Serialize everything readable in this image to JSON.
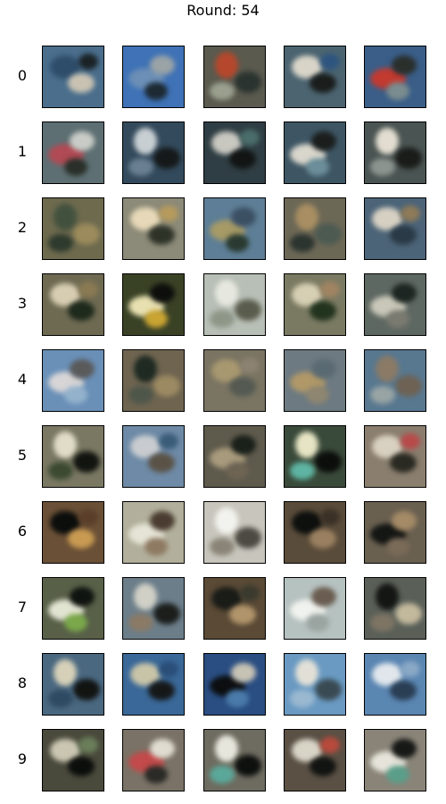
{
  "title": "Round: 54",
  "rows": [
    {
      "label": "0",
      "tiles": [
        {
          "bg": "#4a6e8c",
          "blobs": [
            "#2e4d6b",
            "#c9c2b2",
            "#1a2226"
          ]
        },
        {
          "bg": "#3f72b6",
          "blobs": [
            "#6b8fb6",
            "#9aa3a6",
            "#1d2a33"
          ]
        },
        {
          "bg": "#5a5a4e",
          "blobs": [
            "#b5482c",
            "#2a332f",
            "#9aa08e"
          ]
        },
        {
          "bg": "#4b6470",
          "blobs": [
            "#d8d4c8",
            "#1a1d1c",
            "#2e5580"
          ]
        },
        {
          "bg": "#3a5e88",
          "blobs": [
            "#c23a30",
            "#2a2f2c",
            "#7b8c8e"
          ]
        }
      ]
    },
    {
      "label": "1",
      "tiles": [
        {
          "bg": "#5d6f73",
          "blobs": [
            "#b04a54",
            "#c9ccc6",
            "#2a3029"
          ]
        },
        {
          "bg": "#334a5c",
          "blobs": [
            "#c8cfd3",
            "#16191a",
            "#6a7f92"
          ]
        },
        {
          "bg": "#2f3e44",
          "blobs": [
            "#c8c7c0",
            "#121514",
            "#4a6e6a"
          ]
        },
        {
          "bg": "#3e5664",
          "blobs": [
            "#d9d6cc",
            "#1b1e1d",
            "#6b8e9a"
          ]
        },
        {
          "bg": "#4a5452",
          "blobs": [
            "#e2ddd0",
            "#1a1c1a",
            "#8c9490"
          ]
        }
      ]
    },
    {
      "label": "2",
      "tiles": [
        {
          "bg": "#6d6a4e",
          "blobs": [
            "#42513e",
            "#9c8b5c",
            "#2e3a2d"
          ]
        },
        {
          "bg": "#8c8a78",
          "blobs": [
            "#e6d8b8",
            "#2e3328",
            "#b59a5c"
          ]
        },
        {
          "bg": "#5d7e96",
          "blobs": [
            "#a69a66",
            "#3c5064",
            "#2a3a30"
          ]
        },
        {
          "bg": "#6c6856",
          "blobs": [
            "#a88e62",
            "#4c5a52",
            "#2c3430"
          ]
        },
        {
          "bg": "#4c6478",
          "blobs": [
            "#d6d0c2",
            "#2a3a46",
            "#8e7a58"
          ]
        }
      ]
    },
    {
      "label": "3",
      "tiles": [
        {
          "bg": "#6e6a52",
          "blobs": [
            "#d7cdb2",
            "#1e2a1c",
            "#8a7a52"
          ]
        },
        {
          "bg": "#3a4226",
          "blobs": [
            "#e8e0b0",
            "#0e0f0c",
            "#c9a432"
          ]
        },
        {
          "bg": "#b8bfb6",
          "blobs": [
            "#e6e8e0",
            "#5a5c4c",
            "#8e9688"
          ]
        },
        {
          "bg": "#7a7a62",
          "blobs": [
            "#d6cfb4",
            "#22331e",
            "#a08462"
          ]
        },
        {
          "bg": "#5e6862",
          "blobs": [
            "#c8c7b8",
            "#1d2622",
            "#7a7a70"
          ]
        }
      ]
    },
    {
      "label": "4",
      "tiles": [
        {
          "bg": "#6a90b8",
          "blobs": [
            "#d7d5d6",
            "#5a5a5a",
            "#94b2cc"
          ]
        },
        {
          "bg": "#6e6450",
          "blobs": [
            "#1e2a22",
            "#9c8a62",
            "#4e564a"
          ]
        },
        {
          "bg": "#7a7462",
          "blobs": [
            "#a89870",
            "#545a52",
            "#8c8272"
          ]
        },
        {
          "bg": "#6d7a82",
          "blobs": [
            "#b09868",
            "#5a6a72",
            "#8e8670"
          ]
        },
        {
          "bg": "#587890",
          "blobs": [
            "#8a7a66",
            "#6e6254",
            "#98a4a4"
          ]
        }
      ]
    },
    {
      "label": "5",
      "tiles": [
        {
          "bg": "#7a7862",
          "blobs": [
            "#e0dcc8",
            "#121410",
            "#3c4a32"
          ]
        },
        {
          "bg": "#6e8aa6",
          "blobs": [
            "#c8ccd0",
            "#5a5246",
            "#3a5c78"
          ]
        },
        {
          "bg": "#5e5a4c",
          "blobs": [
            "#a89a7c",
            "#1a201a",
            "#6e6454"
          ]
        },
        {
          "bg": "#3a4a3a",
          "blobs": [
            "#e6e4c4",
            "#0c0e0c",
            "#5eb4a2"
          ]
        },
        {
          "bg": "#8a7e6e",
          "blobs": [
            "#d8d0c0",
            "#2a2a22",
            "#b84a4a"
          ]
        }
      ]
    },
    {
      "label": "6",
      "tiles": [
        {
          "bg": "#6a5036",
          "blobs": [
            "#0c0e0c",
            "#c89a52",
            "#5a3e2a"
          ]
        },
        {
          "bg": "#b2b09c",
          "blobs": [
            "#e6e4d6",
            "#4a3c30",
            "#8e7a62"
          ]
        },
        {
          "bg": "#c8c6bc",
          "blobs": [
            "#f2f2ee",
            "#4c4a42",
            "#8a8478"
          ]
        },
        {
          "bg": "#5a4c3a",
          "blobs": [
            "#0e100e",
            "#9a8060",
            "#3a3026"
          ]
        },
        {
          "bg": "#6a6050",
          "blobs": [
            "#141614",
            "#a48a66",
            "#7a6a58"
          ]
        }
      ]
    },
    {
      "label": "7",
      "tiles": [
        {
          "bg": "#586048",
          "blobs": [
            "#e2e4d2",
            "#101410",
            "#7aa84a"
          ]
        },
        {
          "bg": "#6c7e8a",
          "blobs": [
            "#d0d0c6",
            "#1c1e1c",
            "#8a7a66"
          ]
        },
        {
          "bg": "#5a4a36",
          "blobs": [
            "#1a1c18",
            "#b0946a",
            "#3a3a2e"
          ]
        },
        {
          "bg": "#b6c2c0",
          "blobs": [
            "#f0f2ee",
            "#6a5c50",
            "#9aa4a0"
          ]
        },
        {
          "bg": "#5a6058",
          "blobs": [
            "#141614",
            "#c2b89c",
            "#7e7464"
          ]
        }
      ]
    },
    {
      "label": "8",
      "tiles": [
        {
          "bg": "#4a6880",
          "blobs": [
            "#d6d0b8",
            "#121412",
            "#2e4a62"
          ]
        },
        {
          "bg": "#3a6898",
          "blobs": [
            "#c8c4a8",
            "#161818",
            "#2a4e78"
          ]
        },
        {
          "bg": "#2a4e82",
          "blobs": [
            "#0c0e10",
            "#c6c2b4",
            "#4a7aa8"
          ]
        },
        {
          "bg": "#6a9ac2",
          "blobs": [
            "#e2e0d6",
            "#3a4a52",
            "#9ab8d0"
          ]
        },
        {
          "bg": "#5a86b2",
          "blobs": [
            "#e0e6ec",
            "#2a3e54",
            "#8aa8c6"
          ]
        }
      ]
    },
    {
      "label": "9",
      "tiles": [
        {
          "bg": "#4a4a3c",
          "blobs": [
            "#cac6b2",
            "#0c0e0c",
            "#6a7e5a"
          ]
        },
        {
          "bg": "#7a7266",
          "blobs": [
            "#c24a4a",
            "#e0dcd0",
            "#2a2a26"
          ]
        },
        {
          "bg": "#6e6c60",
          "blobs": [
            "#e6e6dc",
            "#0e100e",
            "#5aa89a"
          ]
        },
        {
          "bg": "#5a5044",
          "blobs": [
            "#d8d4c6",
            "#121412",
            "#b84a3c"
          ]
        },
        {
          "bg": "#8a8478",
          "blobs": [
            "#e6e4da",
            "#161816",
            "#5a9e8a"
          ]
        }
      ]
    }
  ]
}
